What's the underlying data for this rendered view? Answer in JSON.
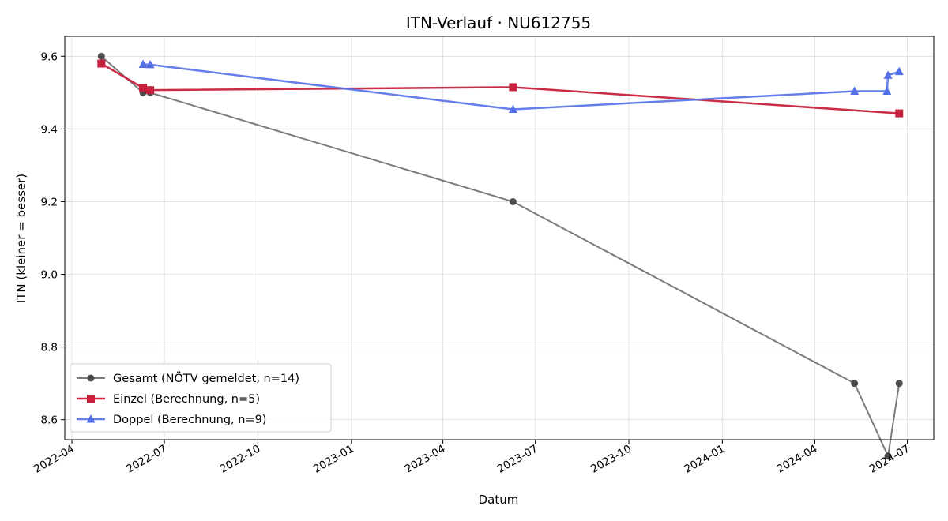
{
  "chart_data": {
    "type": "line",
    "title": "ITN-Verlauf · NU612755",
    "xlabel": "Datum",
    "ylabel": "ITN  (kleiner = besser)",
    "x_axis_type": "date",
    "xlim": [
      "2022-03-25",
      "2024-07-27"
    ],
    "ylim": [
      8.545,
      9.655
    ],
    "x_ticks": [
      "2022-04",
      "2022-07",
      "2022-10",
      "2023-01",
      "2023-04",
      "2023-07",
      "2023-10",
      "2024-01",
      "2024-04",
      "2024-07"
    ],
    "y_ticks": [
      "8.6",
      "8.8",
      "9.0",
      "9.2",
      "9.4",
      "9.6"
    ],
    "grid": true,
    "legend_position": "lower-left",
    "series": [
      {
        "name": "Gesamt (NÖTV gemeldet, n=14)",
        "color": "#444444",
        "marker": "circle",
        "points": [
          {
            "x": "2022-04-30",
            "y": 9.6
          },
          {
            "x": "2022-06-10",
            "y": 9.5
          },
          {
            "x": "2022-06-17",
            "y": 9.5
          },
          {
            "x": "2023-06-09",
            "y": 9.2
          },
          {
            "x": "2024-05-10",
            "y": 8.7
          },
          {
            "x": "2024-06-12",
            "y": 8.5
          },
          {
            "x": "2024-06-23",
            "y": 8.7
          }
        ]
      },
      {
        "name": "Einzel (Berechnung, n=5)",
        "color": "#c8213d",
        "marker": "square",
        "points": [
          {
            "x": "2022-04-30",
            "y": 9.58
          },
          {
            "x": "2022-06-10",
            "y": 9.513
          },
          {
            "x": "2022-06-17",
            "y": 9.507
          },
          {
            "x": "2023-06-09",
            "y": 9.515
          },
          {
            "x": "2024-06-23",
            "y": 9.443
          }
        ]
      },
      {
        "name": "Doppel (Berechnung, n=9)",
        "color": "#5470e8",
        "marker": "triangle",
        "points": [
          {
            "x": "2022-06-10",
            "y": 9.578
          },
          {
            "x": "2022-06-17",
            "y": 9.577
          },
          {
            "x": "2023-06-09",
            "y": 9.454
          },
          {
            "x": "2024-05-10",
            "y": 9.504
          },
          {
            "x": "2024-06-11",
            "y": 9.504
          },
          {
            "x": "2024-06-12",
            "y": 9.548
          },
          {
            "x": "2024-06-23",
            "y": 9.558
          }
        ]
      }
    ]
  }
}
